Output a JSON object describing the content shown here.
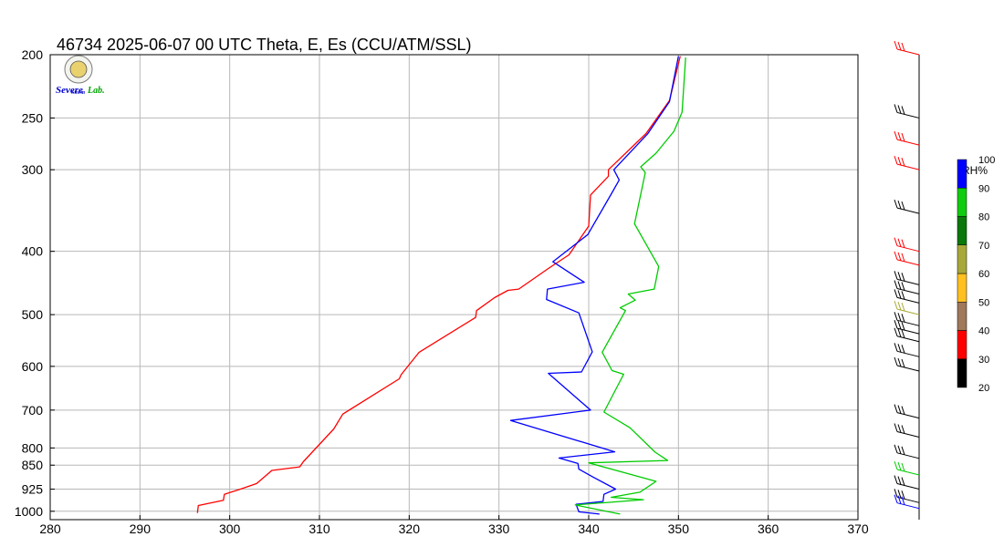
{
  "header": {
    "title": "46734  2025-06-07 00 UTC  Theta, E, Es (CCU/ATM/SSL)"
  },
  "logo": {
    "text_primary": "Severe",
    "text_secondary": "Storm",
    "text_tertiary": "Lab."
  },
  "colorbar": {
    "label": "RH%",
    "ticks": [
      "20",
      "30",
      "40",
      "50",
      "60",
      "70",
      "80",
      "90",
      "100"
    ],
    "colors": [
      "#000000",
      "#ff0000",
      "#a0785a",
      "#ffc020",
      "#a8a838",
      "#0a780a",
      "#10cc10",
      "#0000ff"
    ]
  },
  "chart_data": {
    "type": "line",
    "title": "46734  2025-06-07 00 UTC  Theta, E, Es (CCU/ATM/SSL)",
    "xlabel": "",
    "ylabel": "",
    "xlim": [
      280,
      370
    ],
    "ylim_hpa": [
      1030,
      200
    ],
    "y_scale": "log-pressure",
    "x_ticks": [
      "280",
      "290",
      "300",
      "310",
      "320",
      "330",
      "340",
      "350",
      "360",
      "370"
    ],
    "y_ticks": [
      "200",
      "250",
      "300",
      "400",
      "500",
      "600",
      "700",
      "800",
      "850",
      "925",
      "1000"
    ],
    "grid": true,
    "series": [
      {
        "color": "#ff0000",
        "points": [
          [
            296.4,
            1006
          ],
          [
            296.5,
            980
          ],
          [
            299.3,
            962
          ],
          [
            299.4,
            942
          ],
          [
            301.2,
            925
          ],
          [
            303.0,
            907
          ],
          [
            304.7,
            866
          ],
          [
            307.8,
            855
          ],
          [
            308.2,
            840
          ],
          [
            311.6,
            748
          ],
          [
            312.6,
            710
          ],
          [
            318.9,
            627
          ],
          [
            319.1,
            618
          ],
          [
            321.1,
            571
          ],
          [
            327.4,
            505
          ],
          [
            327.5,
            493
          ],
          [
            329.5,
            471
          ],
          [
            331.0,
            459
          ],
          [
            332.2,
            457
          ],
          [
            335.5,
            425
          ],
          [
            337.8,
            405
          ],
          [
            340.0,
            366
          ],
          [
            340.2,
            328
          ],
          [
            342.2,
            307
          ],
          [
            342.2,
            300
          ],
          [
            346.4,
            264
          ],
          [
            349.0,
            235
          ],
          [
            350.2,
            201
          ]
        ]
      },
      {
        "color": "#0000ff",
        "points": [
          [
            341.2,
            1010
          ],
          [
            338.9,
            1002
          ],
          [
            338.6,
            976
          ],
          [
            341.6,
            966
          ],
          [
            341.7,
            942
          ],
          [
            343.0,
            925
          ],
          [
            340.4,
            885
          ],
          [
            338.9,
            862
          ],
          [
            338.8,
            845
          ],
          [
            336.7,
            829
          ],
          [
            342.9,
            811
          ],
          [
            331.3,
            726
          ],
          [
            340.2,
            700
          ],
          [
            335.5,
            615
          ],
          [
            339.2,
            612
          ],
          [
            340.4,
            570
          ],
          [
            338.9,
            497
          ],
          [
            335.3,
            474
          ],
          [
            335.4,
            457
          ],
          [
            339.5,
            446
          ],
          [
            336.0,
            415
          ],
          [
            339.9,
            377
          ],
          [
            342.5,
            327
          ],
          [
            343.4,
            311
          ],
          [
            342.8,
            300
          ],
          [
            346.6,
            264
          ],
          [
            349.0,
            236
          ],
          [
            350.0,
            201
          ]
        ]
      },
      {
        "color": "#00cc00",
        "points": [
          [
            343.5,
            1010
          ],
          [
            338.5,
            978
          ],
          [
            346.1,
            960
          ],
          [
            342.5,
            952
          ],
          [
            345.7,
            935
          ],
          [
            347.5,
            900
          ],
          [
            340.0,
            843
          ],
          [
            348.8,
            836
          ],
          [
            347.4,
            812
          ],
          [
            344.6,
            745
          ],
          [
            341.7,
            705
          ],
          [
            343.9,
            617
          ],
          [
            342.6,
            609
          ],
          [
            341.5,
            571
          ],
          [
            344.1,
            493
          ],
          [
            343.5,
            488
          ],
          [
            345.2,
            475
          ],
          [
            344.4,
            465
          ],
          [
            347.3,
            457
          ],
          [
            347.8,
            422
          ],
          [
            345.1,
            363
          ],
          [
            346.3,
            303
          ],
          [
            345.8,
            297
          ],
          [
            347.5,
            283
          ],
          [
            349.5,
            262
          ],
          [
            350.4,
            245
          ],
          [
            350.8,
            202
          ]
        ]
      }
    ],
    "rh_barbs": [
      {
        "p": 200,
        "color": "#ff0000"
      },
      {
        "p": 250,
        "color": "#000000"
      },
      {
        "p": 275,
        "color": "#ff0000"
      },
      {
        "p": 300,
        "color": "#ff0000"
      },
      {
        "p": 350,
        "color": "#000000"
      },
      {
        "p": 400,
        "color": "#ff0000"
      },
      {
        "p": 420,
        "color": "#ff0000"
      },
      {
        "p": 450,
        "color": "#000000"
      },
      {
        "p": 465,
        "color": "#000000"
      },
      {
        "p": 480,
        "color": "#000000"
      },
      {
        "p": 500,
        "color": "#a8a838"
      },
      {
        "p": 520,
        "color": "#000000"
      },
      {
        "p": 535,
        "color": "#000000"
      },
      {
        "p": 550,
        "color": "#000000"
      },
      {
        "p": 580,
        "color": "#000000"
      },
      {
        "p": 610,
        "color": "#000000"
      },
      {
        "p": 720,
        "color": "#000000"
      },
      {
        "p": 770,
        "color": "#000000"
      },
      {
        "p": 830,
        "color": "#000000"
      },
      {
        "p": 880,
        "color": "#00cc00"
      },
      {
        "p": 925,
        "color": "#000000"
      },
      {
        "p": 970,
        "color": "#000000"
      },
      {
        "p": 990,
        "color": "#0000ff"
      }
    ]
  }
}
